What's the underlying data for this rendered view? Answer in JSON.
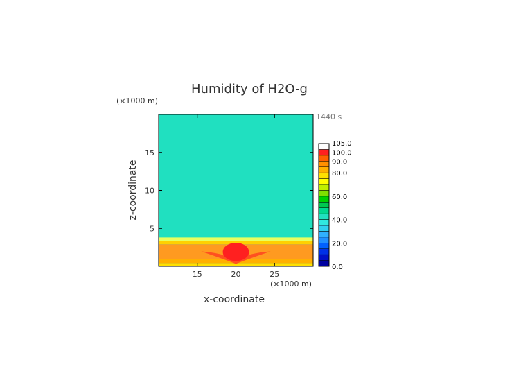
{
  "chart_data": {
    "type": "heatmap",
    "title": "Humidity of H2O-g",
    "xlabel": "x-coordinate",
    "ylabel": "z-coordinate",
    "x_unit": "(×1000 m)",
    "y_unit": "(×1000 m)",
    "time_label": "1440 s",
    "xlim": [
      10,
      30
    ],
    "ylim": [
      0,
      20
    ],
    "xticks": [
      "15",
      "20",
      "25"
    ],
    "xtick_values": [
      15,
      20,
      25
    ],
    "yticks": [
      "5",
      "10",
      "15"
    ],
    "ytick_values": [
      5,
      10,
      15
    ],
    "colorbar": {
      "labels": [
        "0.0",
        "20.0",
        "40.0",
        "60.0",
        "80.0",
        "90.0",
        "100.0",
        "105.0"
      ],
      "label_values": [
        0,
        20,
        40,
        60,
        80,
        90,
        100,
        105
      ],
      "levels": [
        {
          "from": 0,
          "to": 5,
          "color": "#0000a0"
        },
        {
          "from": 5,
          "to": 10,
          "color": "#0010c8"
        },
        {
          "from": 10,
          "to": 15,
          "color": "#0030e8"
        },
        {
          "from": 15,
          "to": 20,
          "color": "#0060ff"
        },
        {
          "from": 20,
          "to": 25,
          "color": "#2090ff"
        },
        {
          "from": 25,
          "to": 30,
          "color": "#30b0ff"
        },
        {
          "from": 30,
          "to": 35,
          "color": "#30d0f0"
        },
        {
          "from": 35,
          "to": 40,
          "color": "#30e8e0"
        },
        {
          "from": 40,
          "to": 45,
          "color": "#20e0c0"
        },
        {
          "from": 45,
          "to": 50,
          "color": "#00d890"
        },
        {
          "from": 50,
          "to": 55,
          "color": "#00c850"
        },
        {
          "from": 55,
          "to": 60,
          "color": "#00d000"
        },
        {
          "from": 60,
          "to": 65,
          "color": "#80e000"
        },
        {
          "from": 65,
          "to": 70,
          "color": "#c0f000"
        },
        {
          "from": 70,
          "to": 75,
          "color": "#ffff00"
        },
        {
          "from": 75,
          "to": 80,
          "color": "#ffe000"
        },
        {
          "from": 80,
          "to": 85,
          "color": "#ffb000"
        },
        {
          "from": 85,
          "to": 90,
          "color": "#ff9000"
        },
        {
          "from": 90,
          "to": 95,
          "color": "#ff6000"
        },
        {
          "from": 95,
          "to": 100,
          "color": "#ff2020"
        },
        {
          "from": 100,
          "to": 105,
          "color": "#ffffff"
        }
      ]
    },
    "field": {
      "background_value": 40,
      "bands": [
        {
          "z_from": 3.3,
          "z_to": 3.8,
          "value": 72,
          "color": "#e8ff60"
        },
        {
          "z_from": 2.9,
          "z_to": 3.3,
          "value": 80,
          "color": "#ffd000"
        },
        {
          "z_from": 1.0,
          "z_to": 2.9,
          "value": 85,
          "color": "#ff9a20"
        },
        {
          "z_from": 0.4,
          "z_to": 1.0,
          "value": 82,
          "color": "#ffb000"
        },
        {
          "z_from": 0.0,
          "z_to": 0.4,
          "value": 75,
          "color": "#ffe000"
        }
      ],
      "core": {
        "x_center": 20,
        "z_center": 1.9,
        "x_radius": 1.7,
        "z_radius": 1.2,
        "value": 97,
        "color": "#ff2020"
      },
      "wings": {
        "x_left": 15.5,
        "x_right": 24.5,
        "z_level": 1.6,
        "value": 92,
        "color": "#ff5020"
      }
    }
  }
}
